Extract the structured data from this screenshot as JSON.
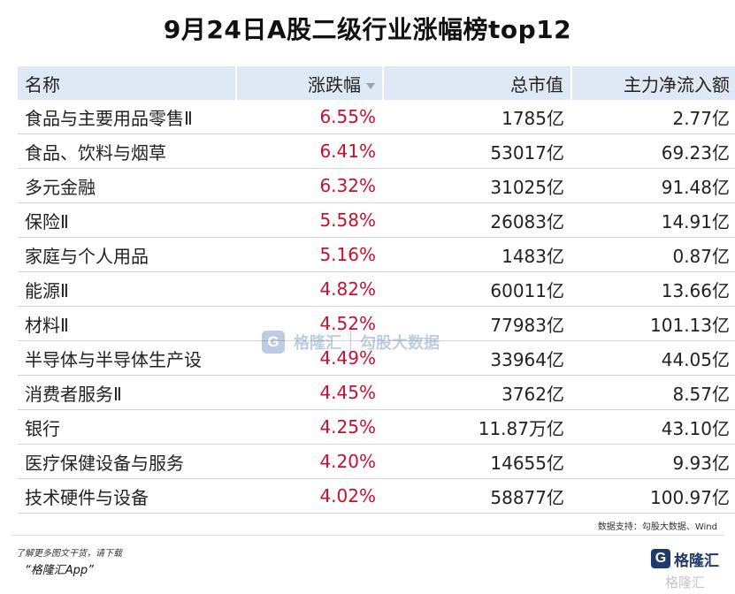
{
  "title": "9月24日A股二级行业涨幅榜top12",
  "table": {
    "headers": {
      "name": "名称",
      "change": "涨跌幅",
      "market_cap": "总市值",
      "net_inflow": "主力净流入额"
    },
    "rows": [
      {
        "name": "食品与主要用品零售Ⅱ",
        "change": "6.55%",
        "market_cap": "1785亿",
        "net_inflow": "2.77亿"
      },
      {
        "name": "食品、饮料与烟草",
        "change": "6.41%",
        "market_cap": "53017亿",
        "net_inflow": "69.23亿"
      },
      {
        "name": "多元金融",
        "change": "6.32%",
        "market_cap": "31025亿",
        "net_inflow": "91.48亿"
      },
      {
        "name": "保险Ⅱ",
        "change": "5.58%",
        "market_cap": "26083亿",
        "net_inflow": "14.91亿"
      },
      {
        "name": "家庭与个人用品",
        "change": "5.16%",
        "market_cap": "1483亿",
        "net_inflow": "0.87亿"
      },
      {
        "name": "能源Ⅱ",
        "change": "4.82%",
        "market_cap": "60011亿",
        "net_inflow": "13.66亿"
      },
      {
        "name": "材料Ⅱ",
        "change": "4.52%",
        "market_cap": "77983亿",
        "net_inflow": "101.13亿"
      },
      {
        "name": "半导体与半导体生产设",
        "change": "4.49%",
        "market_cap": "33964亿",
        "net_inflow": "44.05亿"
      },
      {
        "name": "消费者服务Ⅱ",
        "change": "4.45%",
        "market_cap": "3762亿",
        "net_inflow": "8.57亿"
      },
      {
        "name": "银行",
        "change": "4.25%",
        "market_cap": "11.87万亿",
        "net_inflow": "43.10亿"
      },
      {
        "name": "医疗保健设备与服务",
        "change": "4.20%",
        "market_cap": "14655亿",
        "net_inflow": "9.93亿"
      },
      {
        "name": "技术硬件与设备",
        "change": "4.02%",
        "market_cap": "58877亿",
        "net_inflow": "100.97亿"
      }
    ]
  },
  "source_note": "数据支持：勾股大数据、Wind",
  "footer": {
    "note": "了解更多图文干货，请下载",
    "app": "“格隆汇App”",
    "brand_glyph": "G",
    "brand_name": "格隆汇",
    "brand_watermark": "格隆汇"
  },
  "watermark": {
    "glyph": "G",
    "left_text": "格隆汇",
    "right_text": "勾股大数据"
  },
  "colors": {
    "header_bg": "#dfe9f5",
    "change_red": "#c8102e",
    "brand_blue": "#1f3a6d"
  },
  "icons": {
    "sort": "sort-desc-caret-icon",
    "brand": "gelonghui-logo-icon"
  }
}
